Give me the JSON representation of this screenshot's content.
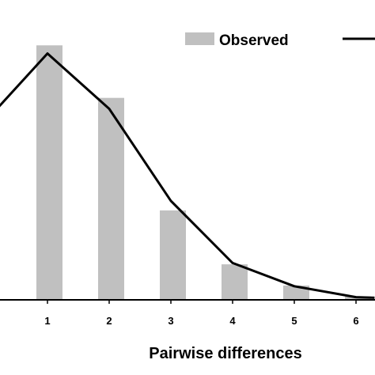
{
  "chart_data": {
    "type": "bar",
    "xlabel": "Pairwise differences",
    "categories": [
      "1",
      "2",
      "3",
      "4",
      "5",
      "6"
    ],
    "ylim": [
      0,
      0.4
    ],
    "grid": false,
    "legend_position": "top-right",
    "legend": {
      "observed_label": "Observed",
      "expected_label": ""
    },
    "series": [
      {
        "name": "Observed",
        "kind": "bar",
        "color": "#c0c0c0",
        "x": [
          1,
          2,
          3,
          4,
          5,
          6
        ],
        "values": [
          0.373,
          0.296,
          0.131,
          0.052,
          0.021,
          0.005
        ]
      },
      {
        "name": "",
        "kind": "line",
        "color": "#000000",
        "x": [
          0,
          1,
          2,
          3,
          4,
          5,
          6,
          6.3
        ],
        "values": [
          0.262,
          0.361,
          0.28,
          0.145,
          0.054,
          0.02,
          0.004,
          0.003
        ]
      }
    ]
  }
}
